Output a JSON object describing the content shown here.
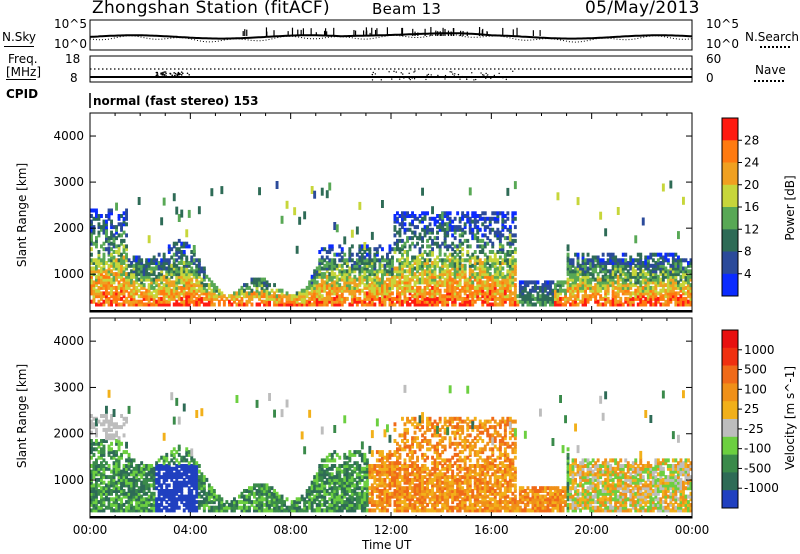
{
  "header": {
    "station": "Zhongshan Station (fitACF)",
    "beam": "Beam 13",
    "date": "05/May/2013"
  },
  "top_panel": {
    "left_label": "N.Sky",
    "right_label": "N.Search",
    "left_ticks": [
      "10^5",
      "10^0"
    ],
    "right_ticks": [
      "10^5",
      "10^0"
    ]
  },
  "freq_panel": {
    "left_label_1": "Freq.",
    "left_label_2": "[MHz]",
    "left_ticks": [
      "18",
      "8"
    ],
    "right_label": "Nave",
    "right_ticks": [
      "60",
      "0"
    ],
    "cpid_label": "CPID",
    "cpid_text": "normal (fast stereo) 153"
  },
  "chart_data": [
    {
      "type": "heatmap",
      "title": "",
      "xlabel": "Time UT",
      "ylabel": "Slant Range [km]",
      "xlim": [
        "00:00",
        "24:00"
      ],
      "ylim": [
        180,
        4500
      ],
      "yticks": [
        1000,
        2000,
        3000,
        4000
      ],
      "colorbar": {
        "label": "Power [dB]",
        "ticks": [
          4,
          8,
          12,
          16,
          20,
          24,
          28
        ],
        "colors": [
          "#0b2bff",
          "#2b4a9a",
          "#2e6b56",
          "#58a855",
          "#c7d63a",
          "#f0a020",
          "#ff7a10",
          "#ff1a10"
        ]
      }
    },
    {
      "type": "heatmap",
      "title": "",
      "xlabel": "Time UT",
      "ylabel": "Slant Range [km]",
      "xlim": [
        "00:00",
        "24:00"
      ],
      "ylim": [
        180,
        4500
      ],
      "yticks": [
        1000,
        2000,
        3000,
        4000
      ],
      "colorbar": {
        "label": "Velocity [m s^-1]",
        "ticks": [
          "1000",
          "500",
          "100",
          "25",
          "-25",
          "-100",
          "-500",
          "-1000"
        ],
        "colors": [
          "#2040c0",
          "#2e6b56",
          "#3a8a4a",
          "#6ccf40",
          "#bdbdbd",
          "#f2b01a",
          "#f09018",
          "#f06a18",
          "#f03010",
          "#e81010"
        ]
      }
    }
  ],
  "x_axis": {
    "ticks": [
      "00:00",
      "04:00",
      "08:00",
      "12:00",
      "16:00",
      "20:00",
      "00:00"
    ],
    "label": "Time UT"
  }
}
